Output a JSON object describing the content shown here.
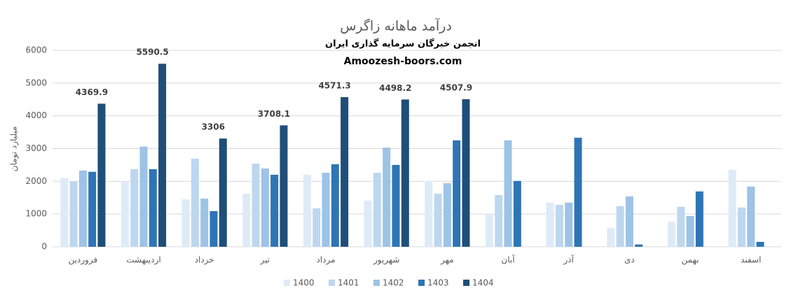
{
  "chart_data": {
    "type": "bar",
    "title": "درآمد ماهانه زاگرس",
    "subtitle": "انجمن خبرگان سرمایه گذاری ایران",
    "source": "Amoozesh-boors.com",
    "y_label": "میلیارد تومان",
    "categories": [
      "فروردین",
      "اردیبهشت",
      "خرداد",
      "تیر",
      "مرداد",
      "شهریور",
      "مهر",
      "آبان",
      "آذر",
      "دی",
      "بهمن",
      "اسفند"
    ],
    "series": [
      {
        "name": "1400",
        "color": "#deebf7",
        "values": [
          2100,
          2000,
          1450,
          1620,
          2200,
          1410,
          2010,
          980,
          1350,
          580,
          770,
          2350
        ]
      },
      {
        "name": "1401",
        "color": "#bdd7ee",
        "values": [
          1990,
          2370,
          2690,
          2540,
          1175,
          2260,
          1620,
          1580,
          1280,
          1240,
          1220,
          1200
        ]
      },
      {
        "name": "1402",
        "color": "#9dc3e6",
        "values": [
          2330,
          3060,
          1470,
          2390,
          2260,
          3030,
          1940,
          3250,
          1350,
          1540,
          940,
          1840
        ]
      },
      {
        "name": "1403",
        "color": "#2e75b6",
        "values": [
          2290,
          2370,
          1090,
          2200,
          2520,
          2500,
          3250,
          2010,
          3330,
          70,
          1690,
          150
        ]
      },
      {
        "name": "1404",
        "color": "#1f4e79",
        "data_labels": true,
        "values": [
          4369.9,
          5590.5,
          3306,
          3708.1,
          4571.3,
          4498.2,
          4507.9,
          null,
          null,
          null,
          null,
          null
        ]
      }
    ],
    "ylim": [
      0,
      6000
    ],
    "yticks": [
      0,
      1000,
      2000,
      3000,
      4000,
      5000,
      6000
    ],
    "grid": true,
    "legend": "bottom"
  }
}
